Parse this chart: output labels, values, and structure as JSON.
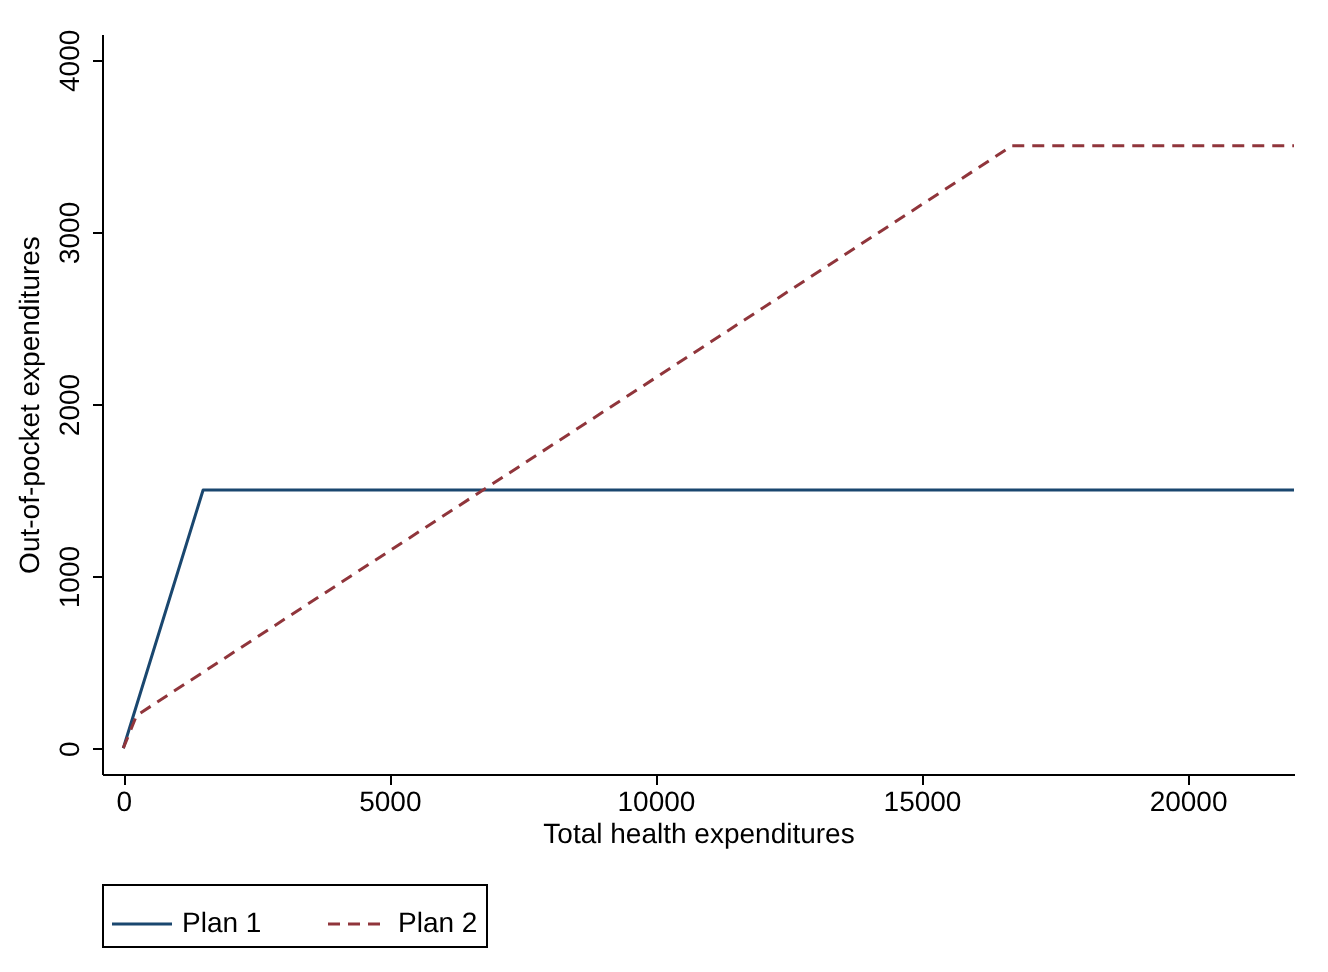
{
  "chart_data": {
    "type": "line",
    "xlabel": "Total health expenditures",
    "ylabel": "Out-of-pocket expenditures",
    "xlim": [
      -400,
      22000
    ],
    "xticks": [
      0,
      5000,
      10000,
      15000,
      20000
    ],
    "ylim": [
      -150,
      4150
    ],
    "yticks": [
      0,
      1000,
      2000,
      3000,
      4000
    ],
    "grid": false,
    "legend": "bottom",
    "marker": "none",
    "series": [
      {
        "name": "Plan 1",
        "color": "#1a476f",
        "line_style": "solid",
        "x": [
          0,
          1500,
          22000
        ],
        "values": [
          0,
          1500,
          1500
        ]
      },
      {
        "name": "Plan 2",
        "color": "#90353b",
        "line_style": "dashed",
        "x": [
          0,
          250,
          16700,
          22000
        ],
        "values": [
          0,
          190,
          3500,
          3500
        ]
      }
    ]
  }
}
